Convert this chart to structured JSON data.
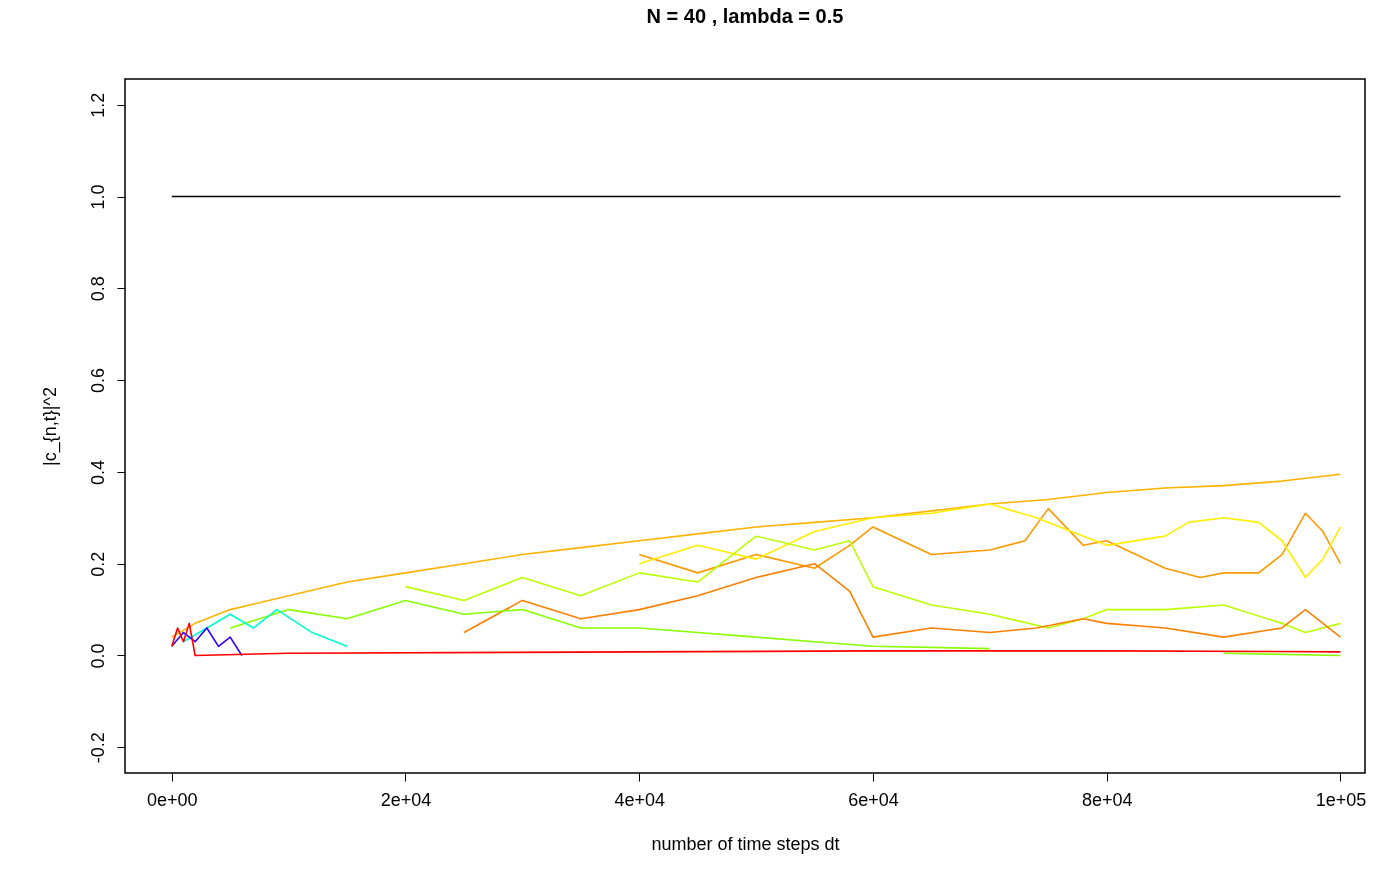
{
  "chart_data": {
    "type": "line",
    "title": "N =  40 , lambda =  0.5",
    "xlabel": "number of time steps dt",
    "ylabel": "|c_{n,t}|^2",
    "xlim": [
      -4000,
      102100
    ],
    "ylim": [
      -0.256,
      1.256
    ],
    "xticks": [
      {
        "value": 0,
        "label": "0e+00"
      },
      {
        "value": 20000,
        "label": "2e+04"
      },
      {
        "value": 40000,
        "label": "4e+04"
      },
      {
        "value": 60000,
        "label": "6e+04"
      },
      {
        "value": 80000,
        "label": "8e+04"
      },
      {
        "value": 100000,
        "label": "1e+05"
      }
    ],
    "yticks": [
      -0.2,
      {
        "value": 0,
        "label": "0.0"
      },
      0.2,
      0.4,
      0.6,
      0.8,
      {
        "value": 1,
        "label": "1.0"
      },
      1.2
    ],
    "grid": false,
    "legend": false,
    "line_style": "solid",
    "marker": "none",
    "series": [
      {
        "color": "#000000",
        "x": [
          0,
          100000
        ],
        "values": [
          1,
          1
        ]
      },
      {
        "color": "#ffb300",
        "x": [
          0,
          2000,
          5000,
          10000,
          15000,
          20000,
          25000,
          30000,
          35000,
          40000,
          45000,
          50000,
          55000,
          60000,
          65000,
          70000,
          75000,
          80000,
          85000,
          90000,
          95000,
          100000
        ],
        "values": [
          0.04,
          0.07,
          0.1,
          0.13,
          0.16,
          0.18,
          0.2,
          0.22,
          0.235,
          0.25,
          0.265,
          0.28,
          0.29,
          0.3,
          0.315,
          0.33,
          0.34,
          0.355,
          0.365,
          0.37,
          0.38,
          0.395
        ]
      },
      {
        "color": "#ff9900",
        "x": [
          40000,
          45000,
          50000,
          55000,
          58000,
          60000,
          65000,
          70000,
          73000,
          75000,
          78000,
          80000,
          85000,
          88000,
          90000,
          93000,
          95000,
          97000,
          98500,
          100000
        ],
        "values": [
          0.22,
          0.18,
          0.22,
          0.19,
          0.24,
          0.28,
          0.22,
          0.23,
          0.25,
          0.32,
          0.24,
          0.25,
          0.19,
          0.17,
          0.18,
          0.18,
          0.22,
          0.31,
          0.27,
          0.2
        ]
      },
      {
        "color": "#ffee00",
        "x": [
          40000,
          45000,
          50000,
          55000,
          60000,
          65000,
          70000,
          74000,
          76000,
          80000,
          85000,
          87000,
          90000,
          93000,
          95000,
          97000,
          98500,
          100000
        ],
        "values": [
          0.2,
          0.24,
          0.21,
          0.27,
          0.3,
          0.31,
          0.33,
          0.3,
          0.28,
          0.24,
          0.26,
          0.29,
          0.3,
          0.29,
          0.25,
          0.17,
          0.21,
          0.28
        ]
      },
      {
        "color": "#bbff00",
        "x": [
          20000,
          25000,
          30000,
          35000,
          40000,
          45000,
          50000,
          55000,
          58000,
          60000,
          65000,
          70000,
          75000,
          78000,
          80000,
          85000,
          90000,
          95000,
          97000,
          100000
        ],
        "values": [
          0.15,
          0.12,
          0.17,
          0.13,
          0.18,
          0.16,
          0.26,
          0.23,
          0.25,
          0.15,
          0.11,
          0.09,
          0.06,
          0.08,
          0.1,
          0.1,
          0.11,
          0.07,
          0.05,
          0.07
        ]
      },
      {
        "color": "#ff8000",
        "x": [
          25000,
          30000,
          35000,
          40000,
          45000,
          50000,
          55000,
          58000,
          60000,
          65000,
          70000,
          74000,
          78000,
          80000,
          85000,
          90000,
          95000,
          97000,
          100000
        ],
        "values": [
          0.05,
          0.12,
          0.08,
          0.1,
          0.13,
          0.17,
          0.2,
          0.14,
          0.04,
          0.06,
          0.05,
          0.06,
          0.08,
          0.07,
          0.06,
          0.04,
          0.06,
          0.1,
          0.04
        ]
      },
      {
        "color": "#88ff00",
        "x": [
          5000,
          10000,
          15000,
          20000,
          25000,
          30000,
          35000,
          40000,
          45000,
          50000,
          55000,
          60000,
          70000,
          80000,
          90000,
          100000
        ],
        "values": [
          0.06,
          0.1,
          0.08,
          0.12,
          0.09,
          0.1,
          0.06,
          0.06,
          0.05,
          0.04,
          0.03,
          0.02,
          0.015,
          null,
          0.005,
          0.0
        ]
      },
      {
        "color": "#00ffcc",
        "x": [
          1000,
          3000,
          5000,
          7000,
          9000,
          12000,
          15000
        ],
        "values": [
          0.03,
          0.06,
          0.09,
          0.06,
          0.1,
          0.05,
          0.02
        ]
      },
      {
        "color": "#3300ff",
        "x": [
          0,
          1000,
          2000,
          3000,
          4000,
          5000,
          6000
        ],
        "values": [
          0.02,
          0.05,
          0.03,
          0.06,
          0.02,
          0.04,
          0.0
        ]
      },
      {
        "color": "#ff0000",
        "x": [
          0,
          500,
          1000,
          1500,
          2000,
          10000,
          40000,
          60000,
          80000,
          100000
        ],
        "values": [
          0.02,
          0.06,
          0.03,
          0.07,
          0.0,
          0.005,
          0.008,
          0.01,
          0.01,
          0.008
        ]
      }
    ]
  }
}
